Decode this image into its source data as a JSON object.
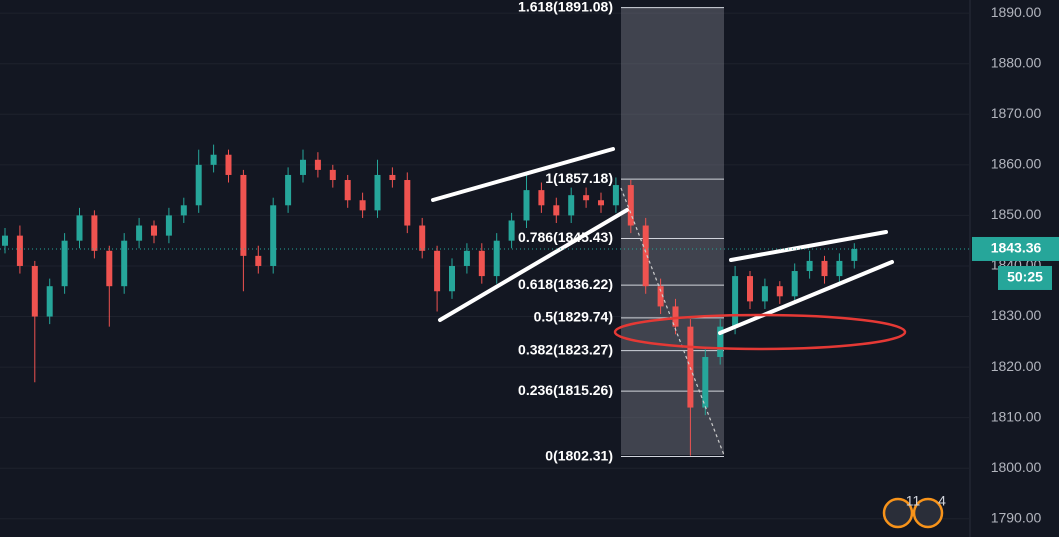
{
  "chart_data": {
    "type": "candlestick",
    "up_color": "#26a69a",
    "down_color": "#ef5350",
    "ylim": [
      1786.4,
      1892.6
    ],
    "yticks": [
      {
        "value": 1790,
        "label": "1790.00"
      },
      {
        "value": 1800,
        "label": "1800.00"
      },
      {
        "value": 1810,
        "label": "1810.00"
      },
      {
        "value": 1820,
        "label": "1820.00"
      },
      {
        "value": 1830,
        "label": "1830.00"
      },
      {
        "value": 1840,
        "label": "1840.00"
      },
      {
        "value": 1850,
        "label": "1850.00"
      },
      {
        "value": 1860,
        "label": "1860.00"
      },
      {
        "value": 1870,
        "label": "1870.00"
      },
      {
        "value": 1880,
        "label": "1880.00"
      },
      {
        "value": 1890,
        "label": "1890.00"
      }
    ],
    "grid": true,
    "open": [
      1844,
      1846,
      1840,
      1830,
      1836,
      1845,
      1850,
      1843,
      1836,
      1845,
      1848,
      1846,
      1850,
      1852,
      1860,
      1862,
      1858,
      1842,
      1840,
      1852,
      1858,
      1861,
      1859,
      1857,
      1853,
      1851,
      1858,
      1857,
      1848,
      1843,
      1835,
      1840,
      1843,
      1838,
      1845,
      1849,
      1855,
      1852,
      1850,
      1854,
      1853,
      1852,
      1856,
      1848,
      1836,
      1832,
      1828,
      1812,
      1822,
      1828,
      1838,
      1833,
      1836,
      1834,
      1839,
      1841,
      1838,
      1841
    ],
    "high": [
      1847.5,
      1848,
      1841,
      1837.5,
      1846.5,
      1851.5,
      1851,
      1844,
      1846.5,
      1849.5,
      1849,
      1851.5,
      1853.5,
      1863,
      1864,
      1863,
      1859,
      1844,
      1853.5,
      1859.5,
      1863,
      1862.5,
      1860,
      1858,
      1854.5,
      1861,
      1859.5,
      1858.5,
      1849.5,
      1844,
      1841.5,
      1844.5,
      1844.5,
      1846.5,
      1850.5,
      1858,
      1856.5,
      1853.5,
      1855.5,
      1855.5,
      1854.5,
      1857.5,
      1857,
      1849.5,
      1837.5,
      1833.5,
      1829.5,
      1823.5,
      1829.5,
      1840,
      1839,
      1837.5,
      1837,
      1840.5,
      1843,
      1842,
      1842.5,
      1844.5
    ],
    "low": [
      1842.5,
      1838.5,
      1817,
      1828.5,
      1834.5,
      1843.5,
      1841.5,
      1828,
      1834.5,
      1843.5,
      1844.5,
      1844.5,
      1848.5,
      1850.5,
      1858.5,
      1856.5,
      1835,
      1838.5,
      1838.5,
      1850.5,
      1856.5,
      1857.5,
      1855.5,
      1851.5,
      1849.5,
      1849.5,
      1855.5,
      1846.5,
      1841.5,
      1831,
      1833.5,
      1838.5,
      1836.5,
      1836.5,
      1843.5,
      1847.5,
      1850.5,
      1848.5,
      1848.5,
      1851.5,
      1850.5,
      1850.5,
      1846.5,
      1834.5,
      1830.5,
      1826.5,
      1802.5,
      1810.5,
      1820.5,
      1826.5,
      1831.5,
      1831.5,
      1832.5,
      1832.5,
      1837.5,
      1836.5,
      1836.5,
      1839.5
    ],
    "close": [
      1846,
      1840,
      1830,
      1836,
      1845,
      1850,
      1843,
      1836,
      1845,
      1848,
      1846,
      1850,
      1852,
      1860,
      1862,
      1858,
      1842,
      1840,
      1852,
      1858,
      1861,
      1859,
      1857,
      1853,
      1851,
      1858,
      1857,
      1848,
      1843,
      1835,
      1840,
      1843,
      1838,
      1845,
      1849,
      1855,
      1852,
      1850,
      1854,
      1853,
      1852,
      1856,
      1848,
      1836,
      1832,
      1828,
      1812,
      1822,
      1828,
      1838,
      1833,
      1836,
      1834,
      1839,
      1841,
      1838,
      1841,
      1843.36
    ],
    "fib_levels": [
      {
        "value": 1891.08,
        "label": "1.618(1891.08)"
      },
      {
        "value": 1857.18,
        "label": "1(1857.18)"
      },
      {
        "value": 1845.43,
        "label": "0.786(1845.43)"
      },
      {
        "value": 1836.22,
        "label": "0.618(1836.22)"
      },
      {
        "value": 1829.74,
        "label": "0.5(1829.74)"
      },
      {
        "value": 1823.27,
        "label": "0.382(1823.27)"
      },
      {
        "value": 1815.26,
        "label": "0.236(1815.26)"
      },
      {
        "value": 1802.31,
        "label": "0(1802.31)"
      }
    ],
    "last_price": 1843.36,
    "countdown": "50:25",
    "badges": [
      "11",
      "4"
    ]
  }
}
